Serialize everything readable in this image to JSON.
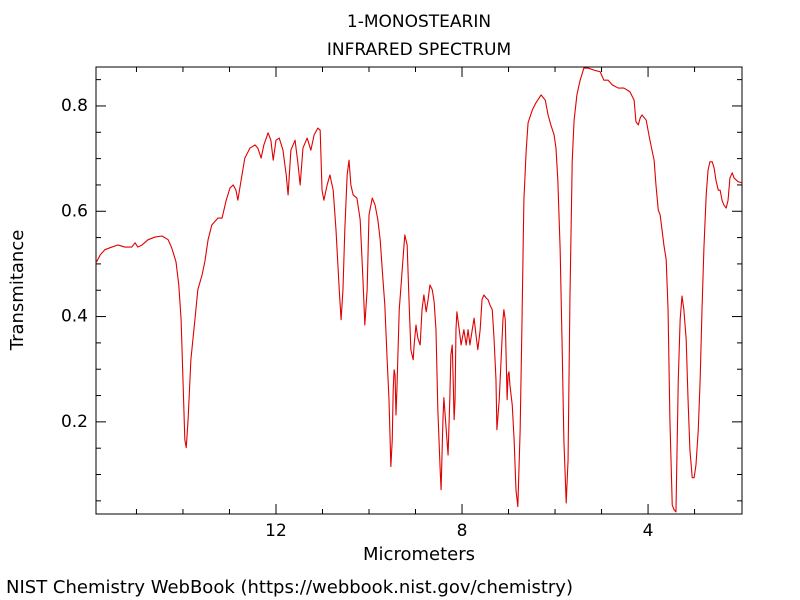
{
  "chart_data": {
    "type": "line",
    "title": "1-MONOSTEARIN",
    "subtitle": "INFRARED SPECTRUM",
    "x_label": "Micrometers",
    "y_label": "Transmitance",
    "footer": "NIST Chemistry WebBook (https://webbook.nist.gov/chemistry)",
    "color": "#e00000",
    "xlim": [
      15.87,
      1.98
    ],
    "ylim": [
      0.025,
      0.874
    ],
    "xticks": [
      12,
      8,
      4
    ],
    "yticks": [
      0.2,
      0.4,
      0.6,
      0.8
    ],
    "xminorticks": [
      15,
      14,
      13,
      11,
      10,
      9,
      7,
      6,
      5,
      3
    ],
    "yminorticks": [
      0.05,
      0.1,
      0.15,
      0.25,
      0.3,
      0.35,
      0.45,
      0.5,
      0.55,
      0.65,
      0.7,
      0.75,
      0.85
    ],
    "x": [
      15.87,
      15.78,
      15.68,
      15.53,
      15.4,
      15.25,
      15.1,
      15.03,
      14.97,
      14.88,
      14.75,
      14.6,
      14.45,
      14.32,
      14.24,
      14.15,
      14.09,
      14.04,
      14.0,
      13.96,
      13.93,
      13.89,
      13.83,
      13.74,
      13.68,
      13.59,
      13.53,
      13.46,
      13.38,
      13.25,
      13.16,
      13.07,
      12.99,
      12.92,
      12.86,
      12.82,
      12.75,
      12.67,
      12.56,
      12.45,
      12.39,
      12.32,
      12.26,
      12.17,
      12.11,
      12.06,
      12.0,
      11.93,
      11.85,
      11.78,
      11.74,
      11.68,
      11.59,
      11.53,
      11.48,
      11.42,
      11.33,
      11.25,
      11.18,
      11.1,
      11.05,
      11.01,
      10.97,
      10.9,
      10.84,
      10.77,
      10.71,
      10.64,
      10.6,
      10.56,
      10.52,
      10.47,
      10.43,
      10.39,
      10.34,
      10.26,
      10.19,
      10.13,
      10.09,
      10.04,
      10.0,
      9.93,
      9.87,
      9.81,
      9.76,
      9.7,
      9.66,
      9.61,
      9.57,
      9.53,
      9.5,
      9.48,
      9.46,
      9.44,
      9.42,
      9.4,
      9.35,
      9.31,
      9.27,
      9.23,
      9.18,
      9.14,
      9.1,
      9.05,
      9.03,
      8.99,
      8.95,
      8.9,
      8.86,
      8.82,
      8.77,
      8.73,
      8.69,
      8.64,
      8.6,
      8.56,
      8.52,
      8.47,
      8.45,
      8.41,
      8.39,
      8.34,
      8.3,
      8.26,
      8.24,
      8.21,
      8.19,
      8.17,
      8.15,
      8.13,
      8.11,
      8.06,
      8.02,
      8.0,
      7.96,
      7.91,
      7.87,
      7.83,
      7.78,
      7.74,
      7.7,
      7.66,
      7.61,
      7.57,
      7.53,
      7.48,
      7.44,
      7.4,
      7.35,
      7.31,
      7.27,
      7.25,
      7.2,
      7.16,
      7.12,
      7.1,
      7.07,
      7.03,
      7.01,
      6.99,
      6.97,
      6.92,
      6.88,
      6.84,
      6.8,
      6.75,
      6.71,
      6.67,
      6.62,
      6.58,
      6.49,
      6.41,
      6.3,
      6.21,
      6.15,
      6.09,
      6.02,
      5.98,
      5.94,
      5.89,
      5.85,
      5.81,
      5.76,
      5.72,
      5.68,
      5.63,
      5.59,
      5.53,
      5.46,
      5.38,
      5.29,
      5.16,
      5.03,
      4.95,
      4.86,
      4.77,
      4.64,
      4.52,
      4.39,
      4.3,
      4.26,
      4.21,
      4.17,
      4.13,
      4.04,
      3.96,
      3.87,
      3.83,
      3.78,
      3.74,
      3.7,
      3.66,
      3.61,
      3.57,
      3.53,
      3.48,
      3.44,
      3.4,
      3.35,
      3.31,
      3.27,
      3.23,
      3.18,
      3.14,
      3.1,
      3.05,
      3.01,
      2.97,
      2.92,
      2.88,
      2.84,
      2.8,
      2.75,
      2.71,
      2.67,
      2.62,
      2.58,
      2.54,
      2.49,
      2.45,
      2.41,
      2.37,
      2.32,
      2.28,
      2.24,
      2.19,
      2.15,
      2.06,
      1.98
    ],
    "values": [
      0.502,
      0.517,
      0.527,
      0.532,
      0.536,
      0.532,
      0.532,
      0.54,
      0.532,
      0.536,
      0.546,
      0.551,
      0.553,
      0.546,
      0.53,
      0.504,
      0.46,
      0.394,
      0.28,
      0.166,
      0.151,
      0.204,
      0.318,
      0.397,
      0.451,
      0.479,
      0.504,
      0.546,
      0.574,
      0.587,
      0.587,
      0.621,
      0.644,
      0.65,
      0.64,
      0.621,
      0.659,
      0.701,
      0.72,
      0.726,
      0.72,
      0.701,
      0.726,
      0.749,
      0.735,
      0.697,
      0.735,
      0.739,
      0.716,
      0.669,
      0.631,
      0.716,
      0.735,
      0.692,
      0.65,
      0.72,
      0.739,
      0.716,
      0.745,
      0.758,
      0.754,
      0.64,
      0.621,
      0.65,
      0.669,
      0.64,
      0.565,
      0.451,
      0.394,
      0.451,
      0.565,
      0.669,
      0.697,
      0.65,
      0.631,
      0.625,
      0.584,
      0.47,
      0.384,
      0.451,
      0.593,
      0.625,
      0.612,
      0.584,
      0.546,
      0.47,
      0.422,
      0.318,
      0.242,
      0.115,
      0.166,
      0.261,
      0.299,
      0.289,
      0.213,
      0.261,
      0.413,
      0.46,
      0.508,
      0.555,
      0.536,
      0.432,
      0.337,
      0.318,
      0.346,
      0.384,
      0.359,
      0.346,
      0.413,
      0.441,
      0.409,
      0.432,
      0.46,
      0.451,
      0.428,
      0.375,
      0.223,
      0.109,
      0.071,
      0.204,
      0.246,
      0.185,
      0.137,
      0.251,
      0.327,
      0.346,
      0.28,
      0.204,
      0.242,
      0.375,
      0.409,
      0.375,
      0.346,
      0.356,
      0.375,
      0.346,
      0.375,
      0.346,
      0.375,
      0.397,
      0.365,
      0.337,
      0.375,
      0.432,
      0.441,
      0.435,
      0.432,
      0.422,
      0.413,
      0.356,
      0.28,
      0.185,
      0.242,
      0.318,
      0.394,
      0.413,
      0.394,
      0.242,
      0.289,
      0.295,
      0.27,
      0.232,
      0.166,
      0.071,
      0.039,
      0.185,
      0.394,
      0.621,
      0.716,
      0.768,
      0.792,
      0.806,
      0.821,
      0.811,
      0.783,
      0.764,
      0.745,
      0.72,
      0.659,
      0.527,
      0.356,
      0.166,
      0.046,
      0.128,
      0.432,
      0.697,
      0.773,
      0.821,
      0.849,
      0.872,
      0.872,
      0.868,
      0.865,
      0.849,
      0.849,
      0.84,
      0.834,
      0.834,
      0.827,
      0.811,
      0.77,
      0.764,
      0.777,
      0.783,
      0.773,
      0.735,
      0.697,
      0.65,
      0.602,
      0.593,
      0.565,
      0.536,
      0.508,
      0.413,
      0.204,
      0.042,
      0.033,
      0.029,
      0.28,
      0.394,
      0.439,
      0.413,
      0.356,
      0.242,
      0.147,
      0.094,
      0.094,
      0.118,
      0.185,
      0.28,
      0.413,
      0.527,
      0.631,
      0.678,
      0.694,
      0.694,
      0.682,
      0.659,
      0.64,
      0.64,
      0.621,
      0.612,
      0.606,
      0.621,
      0.663,
      0.673,
      0.663,
      0.656,
      0.654
    ]
  }
}
